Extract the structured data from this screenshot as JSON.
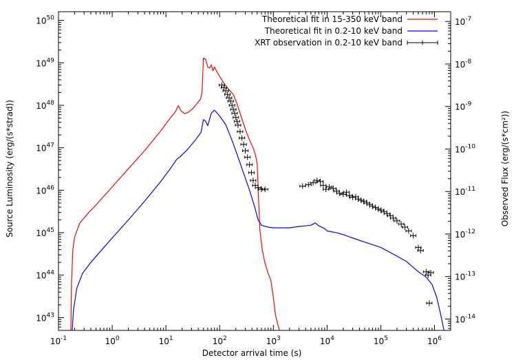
{
  "chart_data": {
    "type": "line",
    "title": "",
    "xlabel": "Detector arrival time (s)",
    "ylabel_left": "Source Luminosity (erg/(s*strad))",
    "ylabel_right": "Observed Flux (erg/(s*cm²))",
    "xscale": "log",
    "yscale": "log",
    "xlim": [
      0.1,
      2000000
    ],
    "ylim_left": [
      5e+42,
      1.6e+50
    ],
    "ylim_right": [
      5.4e-15,
      1.7e-07
    ],
    "legend_position": "top-right",
    "grid": false,
    "x_ticks": [
      {
        "value": 0.1,
        "base": "10",
        "exp": "-1"
      },
      {
        "value": 1,
        "base": "10",
        "exp": "0"
      },
      {
        "value": 10,
        "base": "10",
        "exp": "1"
      },
      {
        "value": 100,
        "base": "10",
        "exp": "2"
      },
      {
        "value": 1000,
        "base": "10",
        "exp": "3"
      },
      {
        "value": 10000,
        "base": "10",
        "exp": "4"
      },
      {
        "value": 100000,
        "base": "10",
        "exp": "5"
      },
      {
        "value": 1000000,
        "base": "10",
        "exp": "6"
      }
    ],
    "y_ticks_left": [
      {
        "value": 1e+43,
        "base": "10",
        "exp": "43"
      },
      {
        "value": 1e+44,
        "base": "10",
        "exp": "44"
      },
      {
        "value": 1e+45,
        "base": "10",
        "exp": "45"
      },
      {
        "value": 1e+46,
        "base": "10",
        "exp": "46"
      },
      {
        "value": 1e+47,
        "base": "10",
        "exp": "47"
      },
      {
        "value": 1e+48,
        "base": "10",
        "exp": "48"
      },
      {
        "value": 1e+49,
        "base": "10",
        "exp": "49"
      },
      {
        "value": 1e+50,
        "base": "10",
        "exp": "50"
      }
    ],
    "y_ticks_right": [
      {
        "value": 1e-14,
        "base": "10",
        "exp": "-14"
      },
      {
        "value": 1e-13,
        "base": "10",
        "exp": "-13"
      },
      {
        "value": 1e-12,
        "base": "10",
        "exp": "-12"
      },
      {
        "value": 1e-11,
        "base": "10",
        "exp": "-11"
      },
      {
        "value": 1e-10,
        "base": "10",
        "exp": "-10"
      },
      {
        "value": 1e-09,
        "base": "10",
        "exp": "-9"
      },
      {
        "value": 1e-08,
        "base": "10",
        "exp": "-8"
      },
      {
        "value": 1e-07,
        "base": "10",
        "exp": "-7"
      }
    ],
    "series": [
      {
        "name": "Theoretical fit in 15-350 keV band",
        "color": "#ff0000",
        "axis": "left",
        "points": [
          [
            0.17,
            5e+42
          ],
          [
            0.175,
            7e+43
          ],
          [
            0.185,
            4e+44
          ],
          [
            0.2,
            8e+44
          ],
          [
            0.25,
            1.7e+45
          ],
          [
            0.35,
            2.8e+45
          ],
          [
            0.5,
            4.5e+45
          ],
          [
            1,
            1.2e+46
          ],
          [
            2,
            3.2e+46
          ],
          [
            4,
            8.5e+46
          ],
          [
            8,
            2.5e+47
          ],
          [
            12,
            5e+47
          ],
          [
            15,
            7e+47
          ],
          [
            17,
            9.8e+47
          ],
          [
            19,
            7.5e+47
          ],
          [
            22,
            6.4e+47
          ],
          [
            26,
            6.8e+47
          ],
          [
            32,
            8.5e+47
          ],
          [
            38,
            1.1e+48
          ],
          [
            44,
            1.4e+48
          ],
          [
            47,
            2e+48
          ],
          [
            50,
            1.3e+49
          ],
          [
            55,
            1.2e+49
          ],
          [
            60,
            8e+48
          ],
          [
            65,
            7.5e+48
          ],
          [
            70,
            9e+48
          ],
          [
            75,
            6.5e+48
          ],
          [
            80,
            8e+48
          ],
          [
            90,
            6e+48
          ],
          [
            100,
            4.8e+48
          ],
          [
            120,
            3.3e+48
          ],
          [
            150,
            2.3e+48
          ],
          [
            180,
            1.8e+48
          ],
          [
            210,
            1.1e+48
          ],
          [
            240,
            6.5e+47
          ],
          [
            280,
            3.6e+47
          ],
          [
            320,
            2.2e+47
          ],
          [
            370,
            1.4e+47
          ],
          [
            420,
            1e+47
          ],
          [
            460,
            7e+46
          ],
          [
            500,
            4.3e+46
          ],
          [
            530,
            6e+45
          ],
          [
            560,
            1.2e+45
          ],
          [
            620,
            4e+44
          ],
          [
            700,
            1.9e+44
          ],
          [
            800,
            1.1e+44
          ],
          [
            900,
            7.5e+43
          ],
          [
            1000,
            3e+43
          ],
          [
            1100,
            1.1e+43
          ],
          [
            1300,
            5e+42
          ]
        ]
      },
      {
        "name": "Theoretical fit in 0.2-10 keV band",
        "color": "#0000ff",
        "axis": "left",
        "points": [
          [
            0.18,
            5e+42
          ],
          [
            0.19,
            1.5e+43
          ],
          [
            0.22,
            5e+43
          ],
          [
            0.28,
            1.1e+44
          ],
          [
            0.4,
            2e+44
          ],
          [
            0.7,
            4.5e+44
          ],
          [
            1,
            7.5e+44
          ],
          [
            2,
            2e+45
          ],
          [
            4,
            5.5e+45
          ],
          [
            8,
            1.6e+46
          ],
          [
            12,
            3.2e+46
          ],
          [
            16,
            5.4e+46
          ],
          [
            18,
            6e+46
          ],
          [
            25,
            9e+46
          ],
          [
            35,
            1.5e+47
          ],
          [
            45,
            2.3e+47
          ],
          [
            50,
            4.6e+47
          ],
          [
            55,
            4.2e+47
          ],
          [
            60,
            3.3e+47
          ],
          [
            70,
            6.5e+47
          ],
          [
            80,
            7.7e+47
          ],
          [
            100,
            5.6e+47
          ],
          [
            130,
            3.5e+47
          ],
          [
            170,
            1.5e+47
          ],
          [
            220,
            6e+46
          ],
          [
            280,
            2.5e+46
          ],
          [
            360,
            1e+46
          ],
          [
            450,
            4e+45
          ],
          [
            520,
            2e+45
          ],
          [
            600,
            1.5e+45
          ],
          [
            800,
            1.35e+45
          ],
          [
            1000,
            1.3e+45
          ],
          [
            2000,
            1.3e+45
          ],
          [
            3000,
            1.4e+45
          ],
          [
            4000,
            1.45e+45
          ],
          [
            5000,
            1.5e+45
          ],
          [
            6000,
            1.7e+45
          ],
          [
            7000,
            1.45e+45
          ],
          [
            9000,
            1.25e+45
          ],
          [
            10000,
            1.1e+45
          ],
          [
            15000,
            1e+45
          ],
          [
            20000,
            9e+44
          ],
          [
            30000,
            7.5e+44
          ],
          [
            50000,
            6e+44
          ],
          [
            100000,
            4.5e+44
          ],
          [
            200000,
            2.8e+44
          ],
          [
            300000,
            2.1e+44
          ],
          [
            500000,
            1.2e+44
          ],
          [
            700000,
            9e+43
          ],
          [
            900000,
            6e+43
          ],
          [
            1100000,
            3e+43
          ],
          [
            1300000,
            1.2e+43
          ],
          [
            1500000,
            5e+42
          ]
        ]
      }
    ],
    "observations": {
      "name": "XRT observation in 0.2-10 keV band",
      "color": "#000000",
      "axis": "left",
      "points": [
        [
          110,
          3e+48
        ],
        [
          120,
          2.6e+48
        ],
        [
          130,
          2.2e+48
        ],
        [
          140,
          1.8e+48
        ],
        [
          150,
          1.5e+48
        ],
        [
          160,
          1.25e+48
        ],
        [
          170,
          1e+48
        ],
        [
          180,
          8e+47
        ],
        [
          190,
          6.5e+47
        ],
        [
          200,
          5.2e+47
        ],
        [
          210,
          4.2e+47
        ],
        [
          220,
          3.4e+47
        ],
        [
          240,
          2.4e+47
        ],
        [
          260,
          1.7e+47
        ],
        [
          280,
          1.2e+47
        ],
        [
          300,
          8.5e+46
        ],
        [
          330,
          6e+46
        ],
        [
          360,
          4e+46
        ],
        [
          390,
          2.6e+46
        ],
        [
          420,
          1.7e+46
        ],
        [
          460,
          1.3e+46
        ],
        [
          520,
          1.15e+46
        ],
        [
          600,
          1.05e+46
        ],
        [
          700,
          1.05e+46
        ],
        [
          3500,
          1.25e+46
        ],
        [
          4500,
          1.35e+46
        ],
        [
          5500,
          1.5e+46
        ],
        [
          6500,
          1.7e+46
        ],
        [
          7500,
          1.6e+46
        ],
        [
          8500,
          1.3e+46
        ],
        [
          9500,
          1.05e+46
        ],
        [
          11000,
          1.2e+46
        ],
        [
          13000,
          1.1e+46
        ],
        [
          15000,
          9.5e+45
        ],
        [
          17000,
          8.5e+45
        ],
        [
          20000,
          8e+45
        ],
        [
          23000,
          9e+45
        ],
        [
          26000,
          7.5e+45
        ],
        [
          30000,
          6.8e+45
        ],
        [
          34000,
          7e+45
        ],
        [
          38000,
          6.2e+45
        ],
        [
          43000,
          5.8e+45
        ],
        [
          48000,
          5.5e+45
        ],
        [
          55000,
          5e+45
        ],
        [
          62000,
          4.6e+45
        ],
        [
          70000,
          4.2e+45
        ],
        [
          80000,
          3.9e+45
        ],
        [
          90000,
          3.6e+45
        ],
        [
          100000,
          3.4e+45
        ],
        [
          115000,
          3.1e+45
        ],
        [
          130000,
          2.8e+45
        ],
        [
          150000,
          2.5e+45
        ],
        [
          170000,
          2.2e+45
        ],
        [
          200000,
          1.9e+45
        ],
        [
          240000,
          1.6e+45
        ],
        [
          280000,
          1.35e+45
        ],
        [
          330000,
          1.1e+45
        ],
        [
          400000,
          8.5e+44
        ],
        [
          500000,
          4.5e+44
        ],
        [
          550000,
          3.8e+44
        ],
        [
          700000,
          1.2e+44
        ],
        [
          760000,
          1e+44
        ],
        [
          850000,
          1.15e+44
        ],
        [
          800000,
          2.2e+43
        ]
      ]
    }
  }
}
